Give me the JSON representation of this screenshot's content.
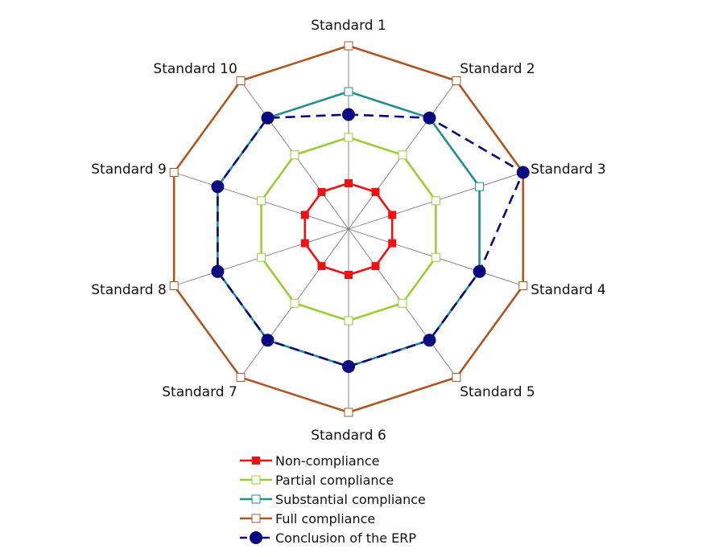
{
  "chart_data": {
    "type": "radar",
    "title": "",
    "categories": [
      "Standard 1",
      "Standard 2",
      "Standard 3",
      "Standard 4",
      "Standard 5",
      "Standard 6",
      "Standard 7",
      "Standard 8",
      "Standard 9",
      "Standard 10"
    ],
    "rlim": [
      0,
      4
    ],
    "grid": true,
    "legend_position": "bottom",
    "series": [
      {
        "name": "Non-compliance",
        "values": [
          1,
          1,
          1,
          1,
          1,
          1,
          1,
          1,
          1,
          1
        ],
        "color": "#ee1111",
        "marker": "square-filled",
        "line": "solid"
      },
      {
        "name": "Partial compliance",
        "values": [
          2,
          2,
          2,
          2,
          2,
          2,
          2,
          2,
          2,
          2
        ],
        "color": "#9acd32",
        "marker": "square-open",
        "line": "solid"
      },
      {
        "name": "Substantial compliance",
        "values": [
          3,
          3,
          3,
          3,
          3,
          3,
          3,
          3,
          3,
          3
        ],
        "color": "#1f8f8f",
        "marker": "square-open",
        "line": "solid"
      },
      {
        "name": "Full compliance",
        "values": [
          4,
          4,
          4,
          4,
          4,
          4,
          4,
          4,
          4,
          4
        ],
        "color": "#b05520",
        "marker": "square-open",
        "line": "solid"
      },
      {
        "name": "Conclusion of the ERP",
        "values": [
          2.5,
          3,
          4,
          3,
          3,
          3,
          3,
          3,
          3,
          3
        ],
        "color": "#0a0a80",
        "marker": "circle-filled",
        "line": "dashed"
      }
    ]
  }
}
